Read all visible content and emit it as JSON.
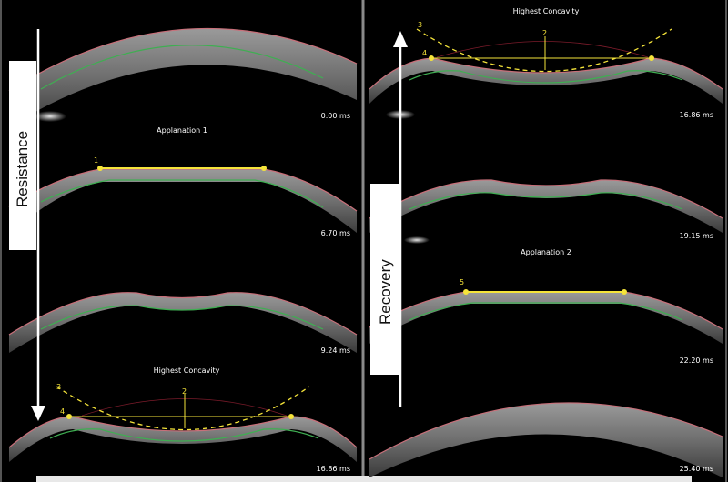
{
  "phases": {
    "left": "Resistance",
    "right": "Recovery"
  },
  "frames": {
    "l1": {
      "time": "0.00 ms"
    },
    "l2": {
      "title": "Applanation 1",
      "time": "6.70 ms",
      "p1": "1"
    },
    "l3": {
      "time": "9.24 ms"
    },
    "l4": {
      "title": "Highest Concavity",
      "time": "16.86 ms",
      "p2": "2",
      "p3": "3",
      "p4": "4"
    },
    "r1": {
      "title": "Highest Concavity",
      "time": "16.86 ms",
      "p2": "2",
      "p3": "3",
      "p4": "4"
    },
    "r2": {
      "time": "19.15 ms"
    },
    "r3": {
      "title": "Applanation 2",
      "time": "22.20 ms",
      "p5": "5"
    },
    "r4": {
      "time": "25.40 ms"
    }
  },
  "colors": {
    "background": "#000000",
    "cornea_outer": "#c8707a",
    "cornea_inner": "#3fae52",
    "marker_yellow": "#f5e43a",
    "divider": "#8a8a8a",
    "arrow": "#ffffff"
  }
}
